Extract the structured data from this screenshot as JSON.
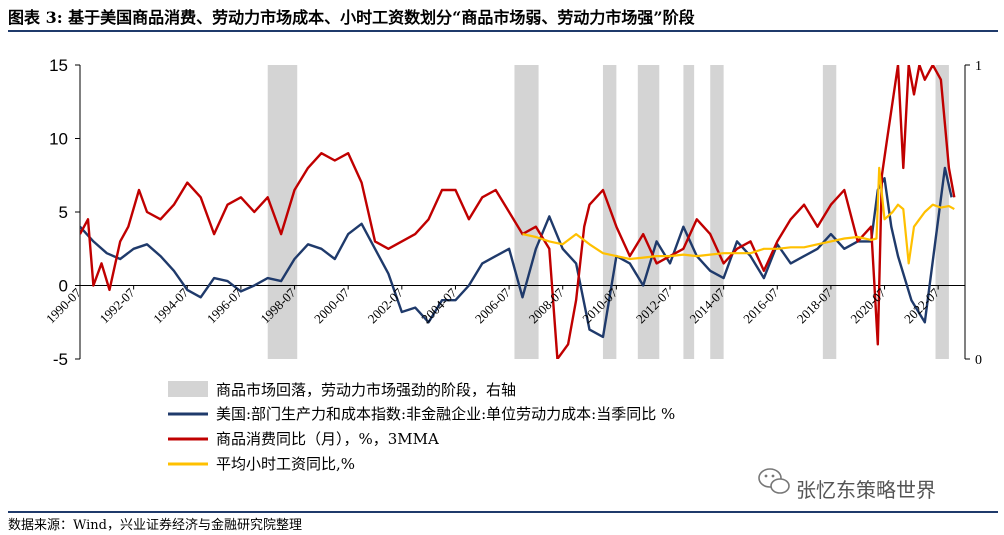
{
  "header": {
    "title": "图表 3: 基于美国商品消费、劳动力市场成本、小时工资数划分“商品市场弱、劳动力市场强”阶段"
  },
  "footer": {
    "source": "数据来源：Wind，兴业证券经济与金融研究院整理"
  },
  "watermark": {
    "text": "张忆东策略世界"
  },
  "colors": {
    "shade": "#d4d4d4",
    "navy": "#1f3a6b",
    "red": "#c00000",
    "yellow": "#ffc000"
  },
  "chart_data": {
    "type": "line",
    "title": "",
    "ylim": [
      -5,
      15
    ],
    "yticks": [
      -5,
      0,
      5,
      10,
      15
    ],
    "y2lim": [
      0,
      1
    ],
    "y2ticks": [
      0,
      1
    ],
    "x_range": [
      1990.5,
      2023.5
    ],
    "xticks": [
      "1990-07",
      "1992-07",
      "1994-07",
      "1996-07",
      "1998-07",
      "2000-07",
      "2002-07",
      "2004-07",
      "2006-07",
      "2008-07",
      "2010-07",
      "2012-07",
      "2014-07",
      "2016-07",
      "2018-07",
      "2020-07",
      "2022-07"
    ],
    "xtick_years": [
      1990.5,
      1992.5,
      1994.5,
      1996.5,
      1998.5,
      2000.5,
      2002.5,
      2004.5,
      2006.5,
      2008.5,
      2010.5,
      2012.5,
      2014.5,
      2016.5,
      2018.5,
      2020.5,
      2022.5
    ],
    "legend_labels": {
      "shade": "商品市场回落，劳动力市场强劲的阶段，右轴",
      "navy": "美国:部门生产力和成本指数:非金融企业:单位劳动力成本:当季同比 %",
      "red": "商品消费同比（月），%，3MMA",
      "yellow": "平均小时工资同比,%"
    },
    "shaded_periods": [
      [
        1997.5,
        1998.6
      ],
      [
        2006.7,
        2007.6
      ],
      [
        2010.0,
        2010.5
      ],
      [
        2011.3,
        2012.1
      ],
      [
        2013.0,
        2013.4
      ],
      [
        2014.0,
        2014.5
      ],
      [
        2018.2,
        2018.7
      ],
      [
        2022.4,
        2022.9
      ]
    ],
    "series": [
      {
        "name": "单位劳动力成本当季同比",
        "color_key": "navy",
        "x": [
          1990.5,
          1991.0,
          1991.5,
          1992.0,
          1992.5,
          1993.0,
          1993.5,
          1994.0,
          1994.5,
          1995.0,
          1995.5,
          1996.0,
          1996.5,
          1997.0,
          1997.5,
          1998.0,
          1998.5,
          1999.0,
          1999.5,
          2000.0,
          2000.5,
          2001.0,
          2001.5,
          2002.0,
          2002.5,
          2003.0,
          2003.5,
          2004.0,
          2004.5,
          2005.0,
          2005.5,
          2006.0,
          2006.5,
          2007.0,
          2007.5,
          2008.0,
          2008.5,
          2009.0,
          2009.5,
          2010.0,
          2010.5,
          2011.0,
          2011.5,
          2012.0,
          2012.5,
          2013.0,
          2013.5,
          2014.0,
          2014.5,
          2015.0,
          2015.5,
          2016.0,
          2016.5,
          2017.0,
          2017.5,
          2018.0,
          2018.5,
          2019.0,
          2019.5,
          2020.0,
          2020.25,
          2020.5,
          2020.75,
          2021.0,
          2021.5,
          2022.0,
          2022.5,
          2022.75,
          2023.0
        ],
        "y": [
          4.0,
          3.0,
          2.2,
          1.8,
          2.5,
          2.8,
          2.0,
          1.0,
          -0.3,
          -0.8,
          0.5,
          0.3,
          -0.4,
          0.0,
          0.5,
          0.3,
          1.8,
          2.8,
          2.5,
          1.8,
          3.5,
          4.2,
          2.5,
          0.8,
          -1.8,
          -1.5,
          -2.5,
          -1.0,
          -1.0,
          0.0,
          1.5,
          2.0,
          2.5,
          -0.8,
          2.5,
          4.7,
          2.5,
          1.5,
          -3.0,
          -3.5,
          2.0,
          1.5,
          0.0,
          3.0,
          1.5,
          4.0,
          2.0,
          1.0,
          0.5,
          3.0,
          2.0,
          0.5,
          2.8,
          1.5,
          2.0,
          2.5,
          3.5,
          2.5,
          3.0,
          3.0,
          6.5,
          7.3,
          4.0,
          2.0,
          -1.0,
          -2.5,
          4.5,
          8.0,
          6.0
        ]
      },
      {
        "name": "商品消费同比（3MMA）",
        "color_key": "red",
        "x": [
          1990.5,
          1990.8,
          1991.0,
          1991.3,
          1991.6,
          1992.0,
          1992.3,
          1992.7,
          1993.0,
          1993.5,
          1994.0,
          1994.5,
          1995.0,
          1995.5,
          1996.0,
          1996.5,
          1997.0,
          1997.5,
          1998.0,
          1998.5,
          1999.0,
          1999.5,
          2000.0,
          2000.5,
          2001.0,
          2001.5,
          2002.0,
          2002.5,
          2003.0,
          2003.5,
          2004.0,
          2004.5,
          2005.0,
          2005.5,
          2006.0,
          2006.5,
          2007.0,
          2007.5,
          2008.0,
          2008.3,
          2008.7,
          2009.0,
          2009.3,
          2009.5,
          2010.0,
          2010.5,
          2011.0,
          2011.5,
          2012.0,
          2012.5,
          2013.0,
          2013.5,
          2014.0,
          2014.5,
          2015.0,
          2015.5,
          2016.0,
          2016.5,
          2017.0,
          2017.5,
          2018.0,
          2018.5,
          2019.0,
          2019.5,
          2020.0,
          2020.25,
          2020.4,
          2020.6,
          2021.0,
          2021.2,
          2021.4,
          2021.6,
          2021.8,
          2022.0,
          2022.3,
          2022.6,
          2022.9,
          2023.1
        ],
        "y": [
          3.5,
          4.5,
          0.0,
          1.5,
          -0.3,
          3.0,
          4.0,
          6.5,
          5.0,
          4.5,
          5.5,
          7.0,
          6.0,
          3.5,
          5.5,
          6.0,
          5.0,
          6.0,
          3.5,
          6.5,
          8.0,
          9.0,
          8.5,
          9.0,
          7.0,
          3.0,
          2.5,
          3.0,
          3.5,
          4.5,
          6.5,
          6.5,
          4.5,
          6.0,
          6.5,
          5.0,
          3.5,
          4.0,
          2.5,
          -5.0,
          -4.0,
          -1.0,
          4.0,
          5.5,
          6.5,
          4.0,
          2.0,
          3.5,
          1.5,
          2.0,
          2.5,
          4.5,
          3.5,
          1.5,
          2.5,
          3.0,
          1.0,
          3.0,
          4.5,
          5.5,
          4.0,
          5.5,
          6.5,
          3.0,
          4.0,
          -4.0,
          7.5,
          10.0,
          15.0,
          8.0,
          15.0,
          13.0,
          15.0,
          14.0,
          15.0,
          14.0,
          8.0,
          6.0
        ]
      },
      {
        "name": "平均小时工资同比",
        "color_key": "yellow",
        "x": [
          2007.0,
          2007.5,
          2008.0,
          2008.5,
          2009.0,
          2009.5,
          2010.0,
          2010.5,
          2011.0,
          2011.5,
          2012.0,
          2012.5,
          2013.0,
          2013.5,
          2014.0,
          2014.5,
          2015.0,
          2015.5,
          2016.0,
          2016.5,
          2017.0,
          2017.5,
          2018.0,
          2018.5,
          2019.0,
          2019.5,
          2020.0,
          2020.2,
          2020.3,
          2020.5,
          2020.8,
          2021.0,
          2021.2,
          2021.4,
          2021.6,
          2021.8,
          2022.0,
          2022.3,
          2022.6,
          2022.9,
          2023.1
        ],
        "y": [
          3.5,
          3.3,
          3.0,
          2.8,
          3.5,
          2.8,
          2.2,
          2.0,
          1.8,
          1.9,
          2.0,
          2.0,
          2.1,
          2.0,
          2.1,
          2.2,
          2.2,
          2.2,
          2.5,
          2.5,
          2.6,
          2.6,
          2.8,
          3.0,
          3.2,
          3.3,
          3.1,
          3.2,
          8.0,
          4.5,
          5.0,
          5.5,
          5.2,
          1.5,
          4.0,
          4.5,
          5.0,
          5.5,
          5.3,
          5.4,
          5.2
        ]
      }
    ]
  }
}
